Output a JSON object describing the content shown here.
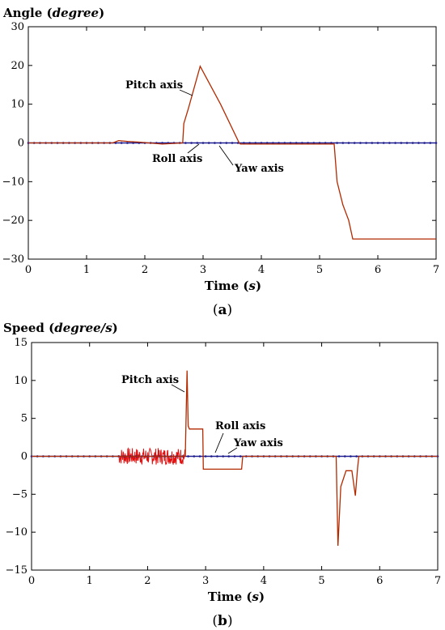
{
  "chart_data": [
    {
      "type": "line",
      "panel": "(a)",
      "ylabel_main": "Angle (",
      "ylabel_unit": "degree",
      "ylabel_end": ")",
      "xlabel_main": "Time (",
      "xlabel_unit": "s",
      "xlabel_end": ")",
      "caption_open": "(",
      "caption_letter": "a",
      "caption_close": ")",
      "xlim": [
        0,
        7
      ],
      "ylim": [
        -30,
        30
      ],
      "xticks": [
        "0",
        "1",
        "2",
        "3",
        "4",
        "5",
        "6",
        "7"
      ],
      "yticks": [
        "30",
        "20",
        "10",
        "0",
        "−10",
        "−20",
        "−30"
      ],
      "series": [
        {
          "name": "Pitch axis",
          "color": "#b22a00",
          "x": [
            0,
            1.45,
            1.55,
            1.7,
            1.9,
            2.3,
            2.65,
            2.67,
            2.75,
            2.95,
            3.3,
            3.62,
            3.64,
            5.25,
            5.3,
            5.4,
            5.5,
            5.57,
            5.6,
            7
          ],
          "y": [
            0,
            0,
            0.6,
            0.4,
            0.2,
            -0.3,
            0,
            5,
            9,
            19.8,
            10,
            0,
            -0.3,
            -0.3,
            -10,
            -16,
            -20,
            -24.8,
            -24.8,
            -24.8
          ]
        },
        {
          "name": "Roll axis",
          "color": "#1a1a8c",
          "x": [
            0,
            7
          ],
          "y": [
            0,
            0
          ]
        },
        {
          "name": "Yaw axis",
          "color": "#1a1a8c",
          "x": [
            0,
            7
          ],
          "y": [
            0,
            0
          ]
        }
      ]
    },
    {
      "type": "line",
      "panel": "(b)",
      "ylabel_main": "Speed (",
      "ylabel_unit": "degree/s",
      "ylabel_end": ")",
      "xlabel_main": "Time (",
      "xlabel_unit": "s",
      "xlabel_end": ")",
      "caption_open": "(",
      "caption_letter": "b",
      "caption_close": ")",
      "xlim": [
        0,
        7
      ],
      "ylim": [
        -15,
        15
      ],
      "xticks": [
        "0",
        "1",
        "2",
        "3",
        "4",
        "5",
        "6",
        "7"
      ],
      "yticks": [
        "15",
        "10",
        "5",
        "0",
        "−5",
        "−10",
        "−15"
      ],
      "noise_segment": {
        "x_start": 1.5,
        "x_end": 2.65,
        "amplitude": 1.1,
        "color": "#e01010"
      },
      "series": [
        {
          "name": "Pitch axis",
          "color": "#b22a00",
          "x": [
            0,
            1.5,
            2.65,
            2.68,
            2.7,
            2.72,
            2.75,
            2.95,
            2.96,
            3.0,
            3.62,
            3.64,
            5.25,
            5.28,
            5.33,
            5.42,
            5.52,
            5.58,
            5.62,
            5.64,
            7
          ],
          "y": [
            0,
            0,
            0,
            11.3,
            4,
            3.6,
            3.6,
            3.6,
            -1.7,
            -1.7,
            -1.7,
            0,
            0,
            -11.8,
            -4,
            -1.9,
            -1.9,
            -5.2,
            -1.5,
            0,
            0
          ]
        },
        {
          "name": "Roll axis",
          "color": "#1a1a8c",
          "x": [
            0,
            7
          ],
          "y": [
            0,
            0
          ]
        },
        {
          "name": "Yaw axis",
          "color": "#1a1a8c",
          "x": [
            0,
            7
          ],
          "y": [
            0,
            0
          ]
        }
      ]
    }
  ]
}
